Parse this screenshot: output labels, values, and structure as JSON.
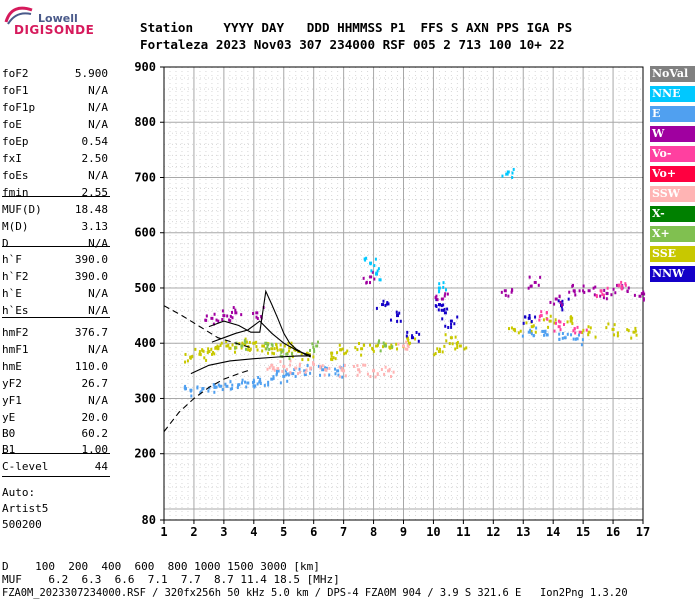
{
  "logo": {
    "brand": "Lowell",
    "name": "DIGISONDE"
  },
  "header": {
    "line1": "Station    YYYY DAY   DDD HHMMSS P1  FFS S AXN PPS IGA PS",
    "line2": "Fortaleza 2023 Nov03 307 234000 RSF 005 2 713 100 10+ 22"
  },
  "scaled_params": [
    {
      "label": "foF2",
      "value": "5.900"
    },
    {
      "label": "foF1",
      "value": "N/A"
    },
    {
      "label": "foF1p",
      "value": "N/A"
    },
    {
      "label": "foE",
      "value": "N/A"
    },
    {
      "label": "foEp",
      "value": "0.54"
    },
    {
      "label": "fxI",
      "value": "2.50"
    },
    {
      "label": "foEs",
      "value": "N/A"
    },
    {
      "label": "fmin",
      "value": "2.55"
    },
    {
      "label": "MUF(D)",
      "value": "18.48"
    },
    {
      "label": "M(D)",
      "value": "3.13"
    },
    {
      "label": "D",
      "value": "N/A"
    },
    {
      "label": "h`F",
      "value": "390.0"
    },
    {
      "label": "h`F2",
      "value": "390.0"
    },
    {
      "label": "h`E",
      "value": "N/A"
    },
    {
      "label": "h`Es",
      "value": "N/A"
    },
    {
      "label": "hmF2",
      "value": "376.7"
    },
    {
      "label": "hmF1",
      "value": "N/A"
    },
    {
      "label": "hmE",
      "value": "110.0"
    },
    {
      "label": "yF2",
      "value": "26.7"
    },
    {
      "label": "yF1",
      "value": "N/A"
    },
    {
      "label": "yE",
      "value": "20.0"
    },
    {
      "label": "B0",
      "value": "60.2"
    },
    {
      "label": "B1",
      "value": "1.00"
    },
    {
      "label": "C-level",
      "value": "44"
    }
  ],
  "autoscaling": {
    "line1": "Auto:",
    "line2": "Artist5",
    "line3": "500200"
  },
  "legend": [
    {
      "label": "NoVal",
      "color": "#808080"
    },
    {
      "label": "NNE",
      "color": "#00c8ff"
    },
    {
      "label": "E",
      "color": "#50a0f0"
    },
    {
      "label": "W",
      "color": "#a000a0"
    },
    {
      "label": "Vo-",
      "color": "#ff40a0"
    },
    {
      "label": "Vo+",
      "color": "#ff0040"
    },
    {
      "label": "SSW",
      "color": "#ffb4b4"
    },
    {
      "label": "X-",
      "color": "#008000"
    },
    {
      "label": "X+",
      "color": "#80c050"
    },
    {
      "label": "SSE",
      "color": "#c8c800"
    },
    {
      "label": "NNW",
      "color": "#1400c8"
    }
  ],
  "chart_data": {
    "type": "scatter",
    "xlim": [
      1,
      17
    ],
    "ylim": [
      80,
      900
    ],
    "x_ticks": [
      1,
      2,
      3,
      4,
      5,
      6,
      7,
      8,
      9,
      10,
      11,
      12,
      13,
      14,
      15,
      16,
      17
    ],
    "y_ticks": [
      80,
      200,
      300,
      400,
      500,
      600,
      700,
      800,
      900
    ],
    "grid": true,
    "series": [
      {
        "name": "SSE",
        "color": "#c8c800",
        "points": [
          [
            1.9,
            375
          ],
          [
            2.2,
            380
          ],
          [
            2.5,
            385
          ],
          [
            2.8,
            390
          ],
          [
            3.1,
            395
          ],
          [
            3.4,
            392
          ],
          [
            3.7,
            398
          ],
          [
            4.0,
            400
          ],
          [
            4.3,
            395
          ],
          [
            4.6,
            390
          ],
          [
            4.9,
            388
          ],
          [
            5.2,
            392
          ],
          [
            5.5,
            385
          ],
          [
            5.8,
            380
          ],
          [
            6.6,
            382
          ],
          [
            6.9,
            388
          ],
          [
            7.6,
            390
          ],
          [
            8.1,
            395
          ],
          [
            8.6,
            392
          ],
          [
            9.2,
            400
          ],
          [
            10.2,
            385
          ],
          [
            10.6,
            410
          ],
          [
            10.9,
            395
          ],
          [
            12.7,
            425
          ],
          [
            13.3,
            430
          ],
          [
            13.9,
            440
          ],
          [
            14.6,
            440
          ],
          [
            15.2,
            420
          ],
          [
            16.0,
            425
          ],
          [
            16.7,
            420
          ]
        ]
      },
      {
        "name": "E",
        "color": "#50a0f0",
        "points": [
          [
            1.9,
            315
          ],
          [
            2.3,
            318
          ],
          [
            2.7,
            320
          ],
          [
            3.1,
            322
          ],
          [
            3.5,
            325
          ],
          [
            3.8,
            328
          ],
          [
            4.2,
            330
          ],
          [
            4.6,
            335
          ],
          [
            5.0,
            340
          ],
          [
            5.3,
            345
          ],
          [
            5.7,
            350
          ],
          [
            6.3,
            352
          ],
          [
            6.8,
            350
          ],
          [
            13.2,
            420
          ],
          [
            13.8,
            415
          ],
          [
            14.4,
            410
          ],
          [
            14.8,
            408
          ]
        ]
      },
      {
        "name": "SSW",
        "color": "#ffb4b4",
        "points": [
          [
            4.6,
            360
          ],
          [
            5.0,
            358
          ],
          [
            5.4,
            355
          ],
          [
            5.9,
            355
          ],
          [
            6.4,
            352
          ],
          [
            7.0,
            350
          ],
          [
            7.5,
            352
          ],
          [
            8.0,
            350
          ],
          [
            8.5,
            350
          ],
          [
            9.0,
            395
          ]
        ]
      },
      {
        "name": "NNW",
        "color": "#1400c8",
        "points": [
          [
            8.3,
            470
          ],
          [
            8.8,
            450
          ],
          [
            9.3,
            410
          ],
          [
            10.2,
            470
          ],
          [
            10.4,
            455
          ],
          [
            10.6,
            440
          ],
          [
            13.2,
            445
          ],
          [
            14.3,
            470
          ]
        ]
      },
      {
        "name": "W",
        "color": "#a000a0",
        "points": [
          [
            2.6,
            445
          ],
          [
            3.0,
            450
          ],
          [
            3.4,
            455
          ],
          [
            4.1,
            455
          ],
          [
            7.9,
            520
          ],
          [
            10.3,
            480
          ],
          [
            12.4,
            495
          ],
          [
            13.4,
            510
          ],
          [
            14.1,
            480
          ],
          [
            14.7,
            495
          ],
          [
            15.2,
            495
          ],
          [
            15.8,
            490
          ],
          [
            16.3,
            500
          ],
          [
            16.9,
            485
          ]
        ]
      },
      {
        "name": "Vo-",
        "color": "#ff40a0",
        "points": [
          [
            13.6,
            450
          ],
          [
            14.2,
            430
          ],
          [
            14.9,
            420
          ],
          [
            15.6,
            495
          ],
          [
            16.2,
            505
          ]
        ]
      },
      {
        "name": "NNE",
        "color": "#00c8ff",
        "points": [
          [
            7.9,
            545
          ],
          [
            8.1,
            525
          ],
          [
            10.2,
            500
          ],
          [
            12.5,
            710
          ]
        ]
      },
      {
        "name": "X+",
        "color": "#80c050",
        "points": [
          [
            3.6,
            395
          ],
          [
            4.4,
            400
          ],
          [
            5.1,
            380
          ],
          [
            6.1,
            395
          ],
          [
            8.4,
            395
          ]
        ]
      }
    ],
    "curves": [
      {
        "name": "profile",
        "style": "solid",
        "points": [
          [
            2.5,
            430
          ],
          [
            3.0,
            440
          ],
          [
            3.5,
            432
          ],
          [
            3.9,
            420
          ],
          [
            4.2,
            420
          ],
          [
            4.4,
            494
          ],
          [
            4.6,
            470
          ],
          [
            4.8,
            445
          ],
          [
            5.0,
            418
          ],
          [
            5.2,
            400
          ],
          [
            5.4,
            390
          ],
          [
            5.7,
            380
          ],
          [
            5.9,
            375
          ]
        ]
      },
      {
        "name": "profile-lower",
        "style": "solid",
        "points": [
          [
            2.6,
            402
          ],
          [
            3.0,
            410
          ],
          [
            3.4,
            418
          ],
          [
            3.8,
            424
          ],
          [
            4.2,
            440
          ],
          [
            4.6,
            418
          ],
          [
            5.0,
            400
          ],
          [
            5.5,
            385
          ],
          [
            5.9,
            378
          ]
        ]
      },
      {
        "name": "profile-ordinary",
        "style": "solid",
        "points": [
          [
            1.9,
            345
          ],
          [
            2.5,
            360
          ],
          [
            3.2,
            368
          ],
          [
            4.0,
            372
          ],
          [
            4.8,
            375
          ],
          [
            5.5,
            377
          ],
          [
            5.9,
            377
          ]
        ]
      },
      {
        "name": "extrapolation-upper",
        "style": "dashed",
        "points": [
          [
            1.0,
            468
          ],
          [
            1.6,
            450
          ],
          [
            2.2,
            430
          ],
          [
            2.8,
            410
          ],
          [
            3.4,
            400
          ],
          [
            3.9,
            392
          ]
        ]
      },
      {
        "name": "extrapolation-lower",
        "style": "dashed",
        "points": [
          [
            1.0,
            240
          ],
          [
            1.5,
            275
          ],
          [
            2.0,
            300
          ],
          [
            2.5,
            320
          ],
          [
            3.0,
            335
          ],
          [
            3.5,
            345
          ],
          [
            3.9,
            352
          ]
        ]
      }
    ]
  },
  "bottom_table": {
    "d_label": "D",
    "d_values": "100  200  400  600  800 1000 1500 3000 [km]",
    "muf_label": "MUF",
    "muf_values": "6.2  6.3  6.6  7.1  7.7  8.7 11.4 18.5 [MHz]",
    "footer": "FZA0M_2023307234000.RSF / 320fx256h 50 kHz 5.0 km / DPS-4 FZA0M 904 / 3.9 S 321.6 E   Ion2Png 1.3.20"
  }
}
